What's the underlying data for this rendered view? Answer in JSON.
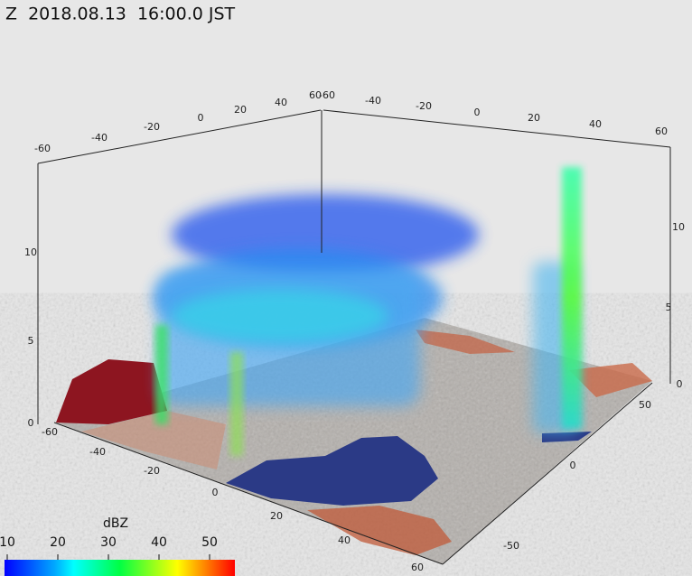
{
  "header": {
    "title": "Z  2018.08.13  16:00.0 JST"
  },
  "axes": {
    "top_left": [
      -60,
      -40,
      -20,
      0,
      20,
      40,
      60
    ],
    "top_right": [
      -60,
      -40,
      -20,
      0,
      20,
      40,
      60
    ],
    "left_height": [
      0,
      5,
      10
    ],
    "right_height": [
      0,
      5,
      10
    ],
    "bottom_left": [
      -60,
      -40,
      -20,
      0,
      20,
      40,
      60
    ],
    "bottom_right": [
      -50,
      0,
      50
    ]
  },
  "colorbar": {
    "label": "dBZ",
    "ticks": [
      10,
      20,
      30,
      40,
      50
    ]
  }
}
